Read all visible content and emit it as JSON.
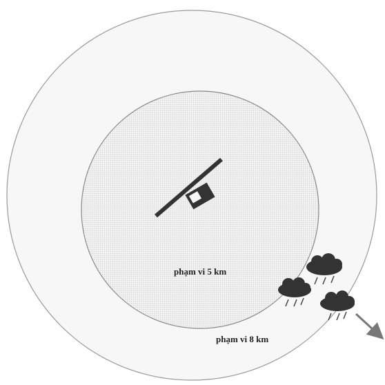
{
  "labels": {
    "inner": "phạm vi 5 km",
    "outer": "phạm vi 8 km"
  }
}
